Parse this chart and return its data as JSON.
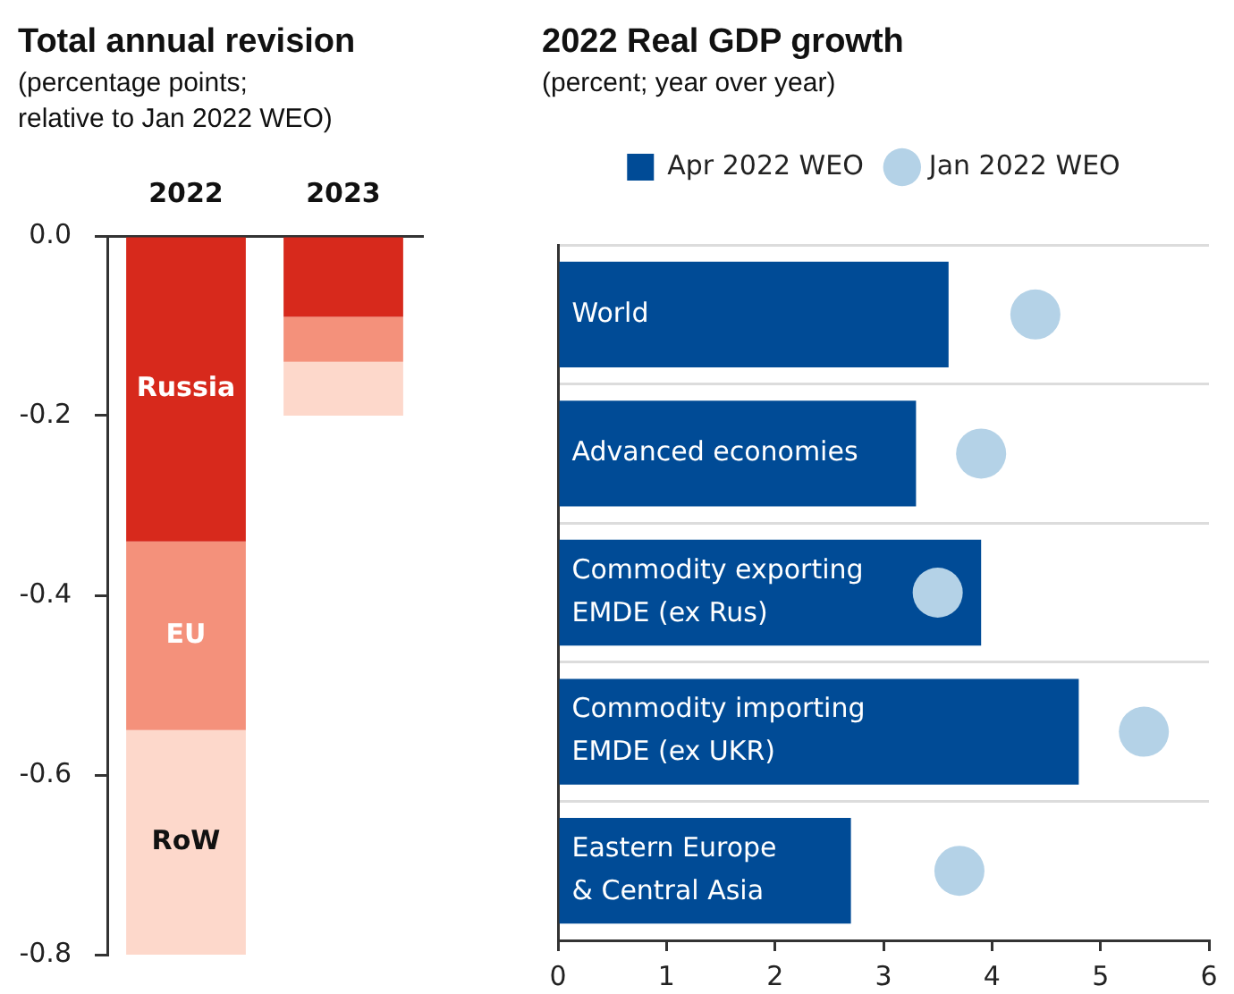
{
  "chart_data": [
    {
      "type": "bar",
      "title": "Total annual revision",
      "subtitle": "(percentage points;\nrelative to Jan 2022 WEO)",
      "categories": [
        "2022",
        "2023"
      ],
      "stacked": true,
      "series": [
        {
          "name": "Russia",
          "color": "#d7291c",
          "values": [
            -0.34,
            -0.09
          ]
        },
        {
          "name": "EU",
          "color": "#f4917b",
          "values": [
            -0.21,
            -0.05
          ]
        },
        {
          "name": "RoW",
          "color": "#fdd8cb",
          "values": [
            -0.25,
            -0.06
          ]
        }
      ],
      "ylim": [
        -0.8,
        0
      ],
      "yticks": [
        {
          "value": 0,
          "label": "0.0"
        },
        -0.2,
        -0.4,
        -0.6,
        -0.8
      ]
    },
    {
      "type": "bar",
      "orientation": "horizontal",
      "title": "2022 Real GDP growth",
      "subtitle": "(percent; year over year)",
      "categories": [
        "World",
        "Advanced economies",
        "Commodity exporting\nEMDE (ex Rus)",
        "Commodity importing\nEMDE (ex UKR)",
        "Eastern Europe\n& Central Asia"
      ],
      "series": [
        {
          "name": "Apr 2022 WEO",
          "color": "#004b96",
          "values": [
            3.6,
            3.3,
            3.9,
            4.8,
            2.7
          ]
        },
        {
          "name": "Jan 2022 WEO",
          "type": "scatter",
          "color": "#b4d2e7",
          "x": [
            "World",
            "Advanced economies",
            "Commodity exporting\nEMDE (ex Rus)",
            "Commodity importing\nEMDE (ex UKR)",
            "Eastern Europe\n& Central Asia"
          ],
          "values": [
            4.4,
            3.9,
            3.5,
            5.4,
            3.7
          ]
        }
      ],
      "xlim": [
        0,
        6
      ],
      "xticks": [
        0,
        1,
        2,
        3,
        4,
        5,
        6
      ],
      "grid": "y",
      "legend": "top",
      "marker": "circle"
    }
  ]
}
